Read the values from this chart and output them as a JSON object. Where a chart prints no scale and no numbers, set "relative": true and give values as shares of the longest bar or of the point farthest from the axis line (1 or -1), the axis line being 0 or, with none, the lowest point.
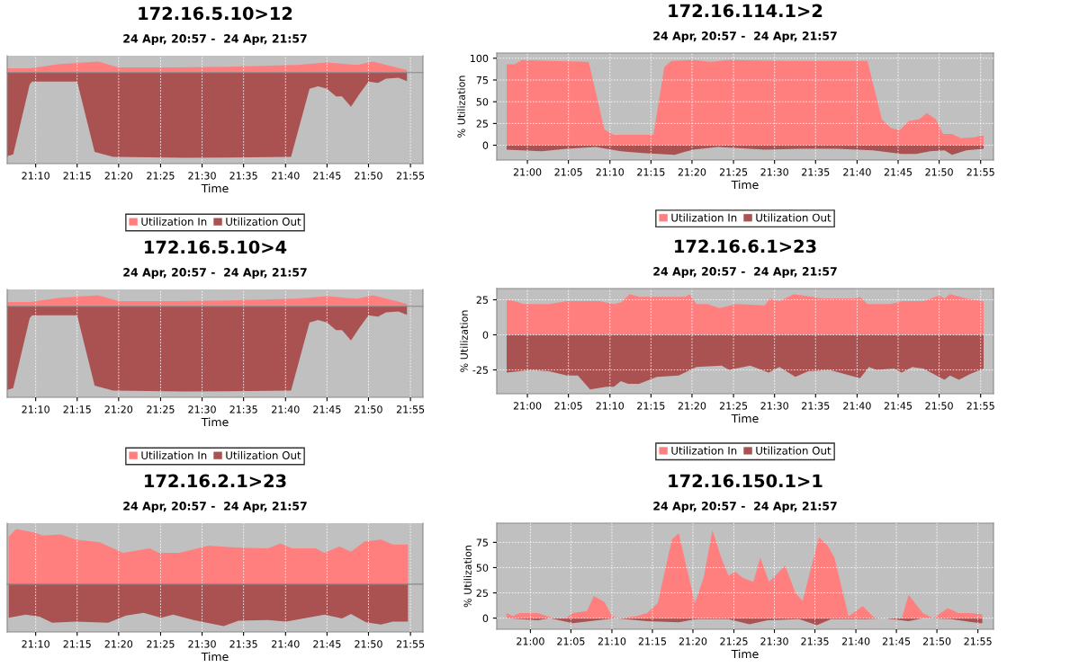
{
  "chart_data": [
    {
      "type": "area",
      "title": "172.16.5.10>12",
      "subtitle": "24 Apr, 20:57 -  24 Apr, 21:57",
      "xlabel": "Time",
      "relative": true,
      "tick_labels": "x",
      "grid": true,
      "legend": "bottom",
      "xlim": [
        21.11,
        21.942
      ],
      "xticks": [
        {
          "value": 21.167,
          "label": "21:10"
        },
        {
          "value": 21.25,
          "label": "21:15"
        },
        {
          "value": 21.333,
          "label": "21:20"
        },
        {
          "value": 21.417,
          "label": "21:25"
        },
        {
          "value": 21.5,
          "label": "21:30"
        },
        {
          "value": 21.583,
          "label": "21:35"
        },
        {
          "value": 21.667,
          "label": "21:40"
        },
        {
          "value": 21.75,
          "label": "21:45"
        },
        {
          "value": 21.833,
          "label": "21:50"
        },
        {
          "value": 21.917,
          "label": "21:55"
        }
      ],
      "series": [
        {
          "name": "Utilization In",
          "color": "#ff7f7f",
          "x": [
            21.11,
            21.155,
            21.215,
            21.292,
            21.333,
            21.452,
            21.572,
            21.69,
            21.75,
            21.81,
            21.842,
            21.91
          ],
          "values": [
            0.05,
            0.05,
            0.1,
            0.13,
            0.06,
            0.06,
            0.07,
            0.09,
            0.12,
            0.09,
            0.13,
            0.03
          ]
        },
        {
          "name": "Utilization Out",
          "color": "#aa5252",
          "x": [
            21.11,
            21.122,
            21.155,
            21.16,
            21.25,
            21.285,
            21.322,
            21.465,
            21.678,
            21.715,
            21.732,
            21.75,
            21.768,
            21.78,
            21.798,
            21.815,
            21.833,
            21.852,
            21.868,
            21.893,
            21.91
          ],
          "values": [
            -0.98,
            -0.96,
            -0.14,
            -0.105,
            -0.105,
            -0.93,
            -0.99,
            -1,
            -0.99,
            -0.19,
            -0.16,
            -0.19,
            -0.28,
            -0.28,
            -0.4,
            -0.25,
            -0.105,
            -0.12,
            -0.07,
            -0.06,
            -0.1
          ]
        }
      ]
    },
    {
      "type": "area",
      "title": "172.16.114.1>2",
      "subtitle": "24 Apr, 20:57 -  24 Apr, 21:57",
      "xlabel": "Time",
      "ylabel": "% Utilization",
      "grid": true,
      "legend": "bottom",
      "xlim": [
        20.938,
        21.943
      ],
      "ylim": [
        -17,
        106
      ],
      "yticks": [
        0,
        25,
        50,
        75,
        100
      ],
      "xticks": [
        {
          "value": 21.0,
          "label": "21:00"
        },
        {
          "value": 21.083,
          "label": "21:05"
        },
        {
          "value": 21.167,
          "label": "21:10"
        },
        {
          "value": 21.25,
          "label": "21:15"
        },
        {
          "value": 21.333,
          "label": "21:20"
        },
        {
          "value": 21.417,
          "label": "21:25"
        },
        {
          "value": 21.5,
          "label": "21:30"
        },
        {
          "value": 21.583,
          "label": "21:35"
        },
        {
          "value": 21.667,
          "label": "21:40"
        },
        {
          "value": 21.75,
          "label": "21:45"
        },
        {
          "value": 21.833,
          "label": "21:50"
        },
        {
          "value": 21.917,
          "label": "21:55"
        }
      ],
      "series": [
        {
          "name": "Utilization In",
          "color": "#ff7f7f",
          "x": [
            20.958,
            20.974,
            20.989,
            21.044,
            21.124,
            21.156,
            21.175,
            21.233,
            21.255,
            21.277,
            21.291,
            21.335,
            21.371,
            21.408,
            21.517,
            21.688,
            21.717,
            21.735,
            21.753,
            21.772,
            21.793,
            21.808,
            21.826,
            21.841,
            21.859,
            21.877,
            21.903,
            21.917,
            21.923
          ],
          "values": [
            93,
            93,
            98,
            97,
            96,
            18,
            12,
            12,
            12,
            90,
            97,
            98,
            96,
            98,
            97,
            97,
            30,
            20,
            17,
            28,
            30,
            37,
            30,
            13,
            13,
            8,
            9,
            11,
            11
          ]
        },
        {
          "name": "Utilization Out",
          "color": "#aa5252",
          "x": [
            20.958,
            21.029,
            21.08,
            21.138,
            21.189,
            21.233,
            21.298,
            21.335,
            21.386,
            21.48,
            21.553,
            21.626,
            21.699,
            21.757,
            21.786,
            21.815,
            21.844,
            21.859,
            21.888,
            21.923
          ],
          "values": [
            -5,
            -7,
            -4,
            -2,
            -7,
            -9,
            -11,
            -5,
            -2,
            -5,
            -4,
            -4,
            -6,
            -10,
            -10,
            -7,
            -6,
            -11,
            -6,
            -4
          ]
        }
      ]
    },
    {
      "type": "area",
      "title": "172.16.5.10>4",
      "subtitle": "24 Apr, 20:57 -  24 Apr, 21:57",
      "xlabel": "Time",
      "relative": true,
      "tick_labels": "x",
      "grid": true,
      "legend": "bottom",
      "xlim": [
        21.11,
        21.942
      ],
      "xticks": [
        {
          "value": 21.167,
          "label": "21:10"
        },
        {
          "value": 21.25,
          "label": "21:15"
        },
        {
          "value": 21.333,
          "label": "21:20"
        },
        {
          "value": 21.417,
          "label": "21:25"
        },
        {
          "value": 21.5,
          "label": "21:30"
        },
        {
          "value": 21.583,
          "label": "21:35"
        },
        {
          "value": 21.667,
          "label": "21:40"
        },
        {
          "value": 21.75,
          "label": "21:45"
        },
        {
          "value": 21.833,
          "label": "21:50"
        },
        {
          "value": 21.917,
          "label": "21:55"
        }
      ],
      "series": [
        {
          "name": "Utilization In",
          "color": "#ff7f7f",
          "x": [
            21.11,
            21.155,
            21.215,
            21.292,
            21.333,
            21.452,
            21.572,
            21.69,
            21.75,
            21.81,
            21.842,
            21.91
          ],
          "values": [
            0.05,
            0.05,
            0.1,
            0.13,
            0.06,
            0.06,
            0.07,
            0.09,
            0.12,
            0.09,
            0.13,
            0.03
          ]
        },
        {
          "name": "Utilization Out",
          "color": "#aa5252",
          "x": [
            21.11,
            21.122,
            21.155,
            21.16,
            21.25,
            21.285,
            21.322,
            21.465,
            21.678,
            21.715,
            21.732,
            21.75,
            21.768,
            21.78,
            21.798,
            21.815,
            21.833,
            21.852,
            21.868,
            21.893,
            21.91
          ],
          "values": [
            -0.98,
            -0.96,
            -0.14,
            -0.105,
            -0.105,
            -0.93,
            -0.99,
            -1,
            -0.99,
            -0.19,
            -0.16,
            -0.19,
            -0.28,
            -0.28,
            -0.4,
            -0.25,
            -0.105,
            -0.12,
            -0.07,
            -0.06,
            -0.1
          ]
        }
      ]
    },
    {
      "type": "area",
      "title": "172.16.6.1>23",
      "subtitle": "24 Apr, 20:57 -  24 Apr, 21:57",
      "xlabel": "Time",
      "ylabel": "% Utilization",
      "grid": true,
      "legend": "bottom",
      "xlim": [
        20.938,
        21.943
      ],
      "ylim": [
        -42,
        33
      ],
      "yticks": [
        {
          "value": -25,
          "label": "-25"
        },
        0,
        25
      ],
      "xticks": [
        {
          "value": 21.0,
          "label": "21:00"
        },
        {
          "value": 21.083,
          "label": "21:05"
        },
        {
          "value": 21.167,
          "label": "21:10"
        },
        {
          "value": 21.25,
          "label": "21:15"
        },
        {
          "value": 21.333,
          "label": "21:20"
        },
        {
          "value": 21.417,
          "label": "21:25"
        },
        {
          "value": 21.5,
          "label": "21:30"
        },
        {
          "value": 21.583,
          "label": "21:35"
        },
        {
          "value": 21.667,
          "label": "21:40"
        },
        {
          "value": 21.75,
          "label": "21:45"
        },
        {
          "value": 21.833,
          "label": "21:50"
        },
        {
          "value": 21.917,
          "label": "21:55"
        }
      ],
      "series": [
        {
          "name": "Utilization In",
          "color": "#ff7f7f",
          "x": [
            20.958,
            20.974,
            20.993,
            21.044,
            21.08,
            21.146,
            21.175,
            21.189,
            21.207,
            21.226,
            21.32,
            21.328,
            21.342,
            21.364,
            21.389,
            21.422,
            21.48,
            21.491,
            21.51,
            21.539,
            21.597,
            21.662,
            21.673,
            21.688,
            21.735,
            21.757,
            21.801,
            21.833,
            21.844,
            21.855,
            21.888,
            21.923
          ],
          "values": [
            25,
            24,
            22,
            22,
            24,
            24,
            22,
            23,
            29,
            27,
            27,
            29,
            22,
            22,
            19,
            22,
            21,
            26,
            24,
            29,
            26,
            26,
            27,
            22,
            22,
            24,
            24,
            28,
            26,
            29,
            26,
            24
          ]
        },
        {
          "name": "Utilization Out",
          "color": "#aa5252",
          "x": [
            20.958,
            21.007,
            21.044,
            21.08,
            21.102,
            21.127,
            21.16,
            21.175,
            21.189,
            21.204,
            21.226,
            21.262,
            21.306,
            21.342,
            21.393,
            21.408,
            21.451,
            21.488,
            21.51,
            21.542,
            21.568,
            21.611,
            21.673,
            21.691,
            21.706,
            21.742,
            21.757,
            21.779,
            21.801,
            21.844,
            21.855,
            21.873,
            21.895,
            21.923
          ],
          "values": [
            -27,
            -25,
            -26,
            -29,
            -29,
            -39,
            -37,
            -37,
            -33,
            -35,
            -35,
            -30,
            -29,
            -23,
            -22,
            -25,
            -22,
            -27,
            -23,
            -30,
            -26,
            -25,
            -31,
            -23,
            -25,
            -24,
            -27,
            -23,
            -24,
            -32,
            -29,
            -32,
            -28,
            -24
          ]
        }
      ]
    },
    {
      "type": "area",
      "title": "172.16.2.1>23",
      "subtitle": "24 Apr, 20:57 -  24 Apr, 21:57",
      "xlabel": "Time",
      "relative": true,
      "tick_labels": "x",
      "grid": true,
      "xlim": [
        21.11,
        21.942
      ],
      "xticks": [
        {
          "value": 21.167,
          "label": "21:10"
        },
        {
          "value": 21.25,
          "label": "21:15"
        },
        {
          "value": 21.333,
          "label": "21:20"
        },
        {
          "value": 21.417,
          "label": "21:25"
        },
        {
          "value": 21.5,
          "label": "21:30"
        },
        {
          "value": 21.583,
          "label": "21:35"
        },
        {
          "value": 21.667,
          "label": "21:40"
        },
        {
          "value": 21.75,
          "label": "21:45"
        },
        {
          "value": 21.833,
          "label": "21:50"
        },
        {
          "value": 21.917,
          "label": "21:55"
        }
      ],
      "series": [
        {
          "color": "#ff7f7f",
          "x": [
            21.113,
            21.128,
            21.163,
            21.182,
            21.217,
            21.247,
            21.295,
            21.342,
            21.395,
            21.413,
            21.455,
            21.513,
            21.573,
            21.632,
            21.657,
            21.68,
            21.727,
            21.745,
            21.775,
            21.798,
            21.825,
            21.858,
            21.882,
            21.912
          ],
          "values": [
            0.86,
            1,
            0.94,
            0.88,
            0.9,
            0.81,
            0.76,
            0.57,
            0.65,
            0.57,
            0.57,
            0.7,
            0.66,
            0.65,
            0.74,
            0.65,
            0.65,
            0.57,
            0.68,
            0.59,
            0.77,
            0.81,
            0.72,
            0.72
          ]
        },
        {
          "color": "#aa5252",
          "x": [
            21.113,
            21.147,
            21.175,
            21.2,
            21.247,
            21.312,
            21.348,
            21.383,
            21.418,
            21.442,
            21.483,
            21.543,
            21.573,
            21.632,
            21.668,
            21.745,
            21.78,
            21.798,
            21.828,
            21.858,
            21.882,
            21.912
          ],
          "values": [
            -0.61,
            -0.55,
            -0.59,
            -0.7,
            -0.68,
            -0.7,
            -0.57,
            -0.52,
            -0.61,
            -0.55,
            -0.65,
            -0.76,
            -0.66,
            -0.65,
            -0.68,
            -0.55,
            -0.62,
            -0.54,
            -0.69,
            -0.73,
            -0.68,
            -0.68
          ]
        }
      ]
    },
    {
      "type": "area",
      "title": "172.16.150.1>1",
      "subtitle": "24 Apr, 20:57 -  24 Apr, 21:57",
      "xlabel": "Time",
      "ylabel": "% Utilization",
      "grid": true,
      "xlim": [
        20.931,
        21.949
      ],
      "ylim": [
        -11,
        94
      ],
      "yticks": [
        0,
        25,
        50,
        75
      ],
      "xticks": [
        {
          "value": 21.0,
          "label": "21:00"
        },
        {
          "value": 21.083,
          "label": "21:05"
        },
        {
          "value": 21.167,
          "label": "21:10"
        },
        {
          "value": 21.25,
          "label": "21:15"
        },
        {
          "value": 21.333,
          "label": "21:20"
        },
        {
          "value": 21.417,
          "label": "21:25"
        },
        {
          "value": 21.5,
          "label": "21:30"
        },
        {
          "value": 21.583,
          "label": "21:35"
        },
        {
          "value": 21.667,
          "label": "21:40"
        },
        {
          "value": 21.75,
          "label": "21:45"
        },
        {
          "value": 21.833,
          "label": "21:50"
        },
        {
          "value": 21.917,
          "label": "21:55"
        }
      ],
      "series": [
        {
          "color": "#ff7f7f",
          "x": [
            20.951,
            20.964,
            20.978,
            21.015,
            21.04,
            21.051,
            21.072,
            21.087,
            21.116,
            21.13,
            21.152,
            21.167,
            21.181,
            21.217,
            21.239,
            21.261,
            21.29,
            21.304,
            21.337,
            21.355,
            21.373,
            21.391,
            21.406,
            21.42,
            21.435,
            21.457,
            21.471,
            21.489,
            21.522,
            21.543,
            21.558,
            21.591,
            21.609,
            21.623,
            21.652,
            21.681,
            21.703,
            21.717,
            21.761,
            21.775,
            21.804,
            21.826,
            21.855,
            21.877,
            21.899,
            21.926
          ],
          "values": [
            5,
            2,
            5,
            5,
            1,
            0,
            0,
            5,
            7,
            22,
            16,
            2,
            0,
            2,
            5,
            15,
            78,
            84,
            15,
            40,
            87,
            60,
            42,
            46,
            40,
            36,
            60,
            36,
            52,
            25,
            17,
            80,
            72,
            60,
            2,
            12,
            1,
            0,
            0,
            23,
            5,
            0,
            10,
            5,
            5,
            4
          ]
        },
        {
          "color": "#aa5252",
          "x": [
            20.951,
            21.015,
            21.04,
            21.087,
            21.138,
            21.174,
            21.239,
            21.304,
            21.341,
            21.406,
            21.449,
            21.486,
            21.551,
            21.587,
            21.616,
            21.688,
            21.725,
            21.775,
            21.804,
            21.862,
            21.92,
            21.926
          ],
          "values": [
            0,
            -2,
            0,
            -5,
            -2,
            0,
            -3,
            -4,
            -1,
            -1,
            -6,
            -2,
            -1,
            -7,
            -1,
            -1,
            0,
            -3,
            0,
            -1,
            -5,
            -5
          ]
        }
      ]
    }
  ]
}
